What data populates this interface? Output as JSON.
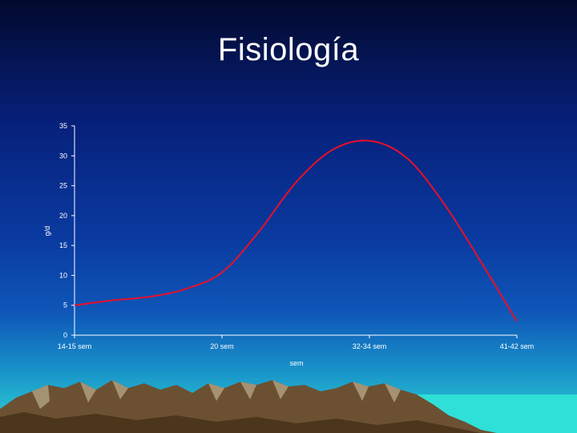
{
  "slide": {
    "title": "Fisiología"
  },
  "chart_data": {
    "type": "line",
    "title": "",
    "xlabel": "sem",
    "ylabel": "g/d",
    "categories": [
      "14-15 sem",
      "20 sem",
      "32-34 sem",
      "41-42 sem"
    ],
    "yticks": [
      0,
      5,
      10,
      15,
      20,
      25,
      30,
      35
    ],
    "ylim": [
      0,
      35
    ],
    "grid": false,
    "series": [
      {
        "color": "#e8102a",
        "x": [
          0,
          0.25,
          0.5,
          0.75,
          1.0,
          1.25,
          1.5,
          1.75,
          2.0,
          2.25,
          2.5,
          2.75,
          3.0
        ],
        "values": [
          5,
          5.8,
          6.4,
          7.7,
          10.5,
          17.3,
          25.5,
          31.0,
          32.5,
          29.7,
          22.2,
          12.5,
          2.3
        ]
      }
    ]
  },
  "colors": {
    "axis": "#ffffff",
    "sea": "#2fe0d8",
    "mountain_dark": "#4a3618",
    "mountain_mid": "#7a6040",
    "mountain_light": "#b8a888"
  }
}
